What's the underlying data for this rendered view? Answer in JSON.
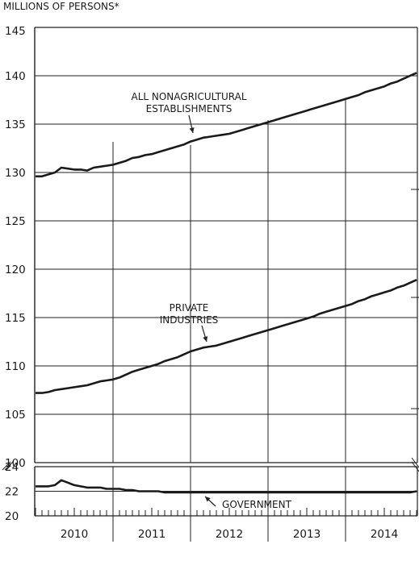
{
  "chart_data": [
    {
      "type": "line",
      "ylabel": "MILLIONS OF PERSONS*",
      "x_labels": [
        "2010",
        "2011",
        "2012",
        "2013",
        "2014"
      ],
      "ylim": [
        100,
        145
      ],
      "yticks": [
        145,
        140,
        135,
        130,
        125,
        120,
        115,
        110,
        105,
        100
      ],
      "grid": true,
      "series": [
        {
          "name": "ALL NONAGRICULTURAL ESTABLISHMENTS",
          "x": [
            2010.0,
            2010.083,
            2010.167,
            2010.25,
            2010.333,
            2010.417,
            2010.5,
            2010.583,
            2010.667,
            2010.75,
            2010.833,
            2010.917,
            2011.0,
            2011.083,
            2011.167,
            2011.25,
            2011.333,
            2011.417,
            2011.5,
            2011.583,
            2011.667,
            2011.75,
            2011.833,
            2011.917,
            2012.0,
            2012.083,
            2012.167,
            2012.25,
            2012.333,
            2012.417,
            2012.5,
            2012.583,
            2012.667,
            2012.75,
            2012.833,
            2012.917,
            2013.0,
            2013.083,
            2013.167,
            2013.25,
            2013.333,
            2013.417,
            2013.5,
            2013.583,
            2013.667,
            2013.75,
            2013.833,
            2013.917,
            2014.0,
            2014.083,
            2014.167,
            2014.25,
            2014.333,
            2014.417,
            2014.5,
            2014.583,
            2014.667,
            2014.75,
            2014.833,
            2014.917
          ],
          "values": [
            129.6,
            129.6,
            129.8,
            130.0,
            130.5,
            130.4,
            130.3,
            130.3,
            130.2,
            130.5,
            130.6,
            130.7,
            130.8,
            131.0,
            131.2,
            131.5,
            131.6,
            131.8,
            131.9,
            132.1,
            132.3,
            132.5,
            132.7,
            132.9,
            133.2,
            133.4,
            133.6,
            133.7,
            133.8,
            133.9,
            134.0,
            134.2,
            134.4,
            134.6,
            134.8,
            135.0,
            135.2,
            135.4,
            135.6,
            135.8,
            136.0,
            136.2,
            136.4,
            136.6,
            136.8,
            137.0,
            137.2,
            137.4,
            137.6,
            137.8,
            138.0,
            138.3,
            138.5,
            138.7,
            138.9,
            139.2,
            139.4,
            139.7,
            140.0,
            140.3
          ]
        },
        {
          "name": "PRIVATE INDUSTRIES",
          "x": [
            2010.0,
            2010.083,
            2010.167,
            2010.25,
            2010.333,
            2010.417,
            2010.5,
            2010.583,
            2010.667,
            2010.75,
            2010.833,
            2010.917,
            2011.0,
            2011.083,
            2011.167,
            2011.25,
            2011.333,
            2011.417,
            2011.5,
            2011.583,
            2011.667,
            2011.75,
            2011.833,
            2011.917,
            2012.0,
            2012.083,
            2012.167,
            2012.25,
            2012.333,
            2012.417,
            2012.5,
            2012.583,
            2012.667,
            2012.75,
            2012.833,
            2012.917,
            2013.0,
            2013.083,
            2013.167,
            2013.25,
            2013.333,
            2013.417,
            2013.5,
            2013.583,
            2013.667,
            2013.75,
            2013.833,
            2013.917,
            2014.0,
            2014.083,
            2014.167,
            2014.25,
            2014.333,
            2014.417,
            2014.5,
            2014.583,
            2014.667,
            2014.75,
            2014.833,
            2014.917
          ],
          "values": [
            107.2,
            107.2,
            107.3,
            107.5,
            107.6,
            107.7,
            107.8,
            107.9,
            108.0,
            108.2,
            108.4,
            108.5,
            108.6,
            108.8,
            109.1,
            109.4,
            109.6,
            109.8,
            110.0,
            110.2,
            110.5,
            110.7,
            110.9,
            111.2,
            111.5,
            111.7,
            111.9,
            112.0,
            112.1,
            112.3,
            112.5,
            112.7,
            112.9,
            113.1,
            113.3,
            113.5,
            113.7,
            113.9,
            114.1,
            114.3,
            114.5,
            114.7,
            114.9,
            115.1,
            115.4,
            115.6,
            115.8,
            116.0,
            116.2,
            116.4,
            116.7,
            116.9,
            117.2,
            117.4,
            117.6,
            117.8,
            118.1,
            118.3,
            118.6,
            118.9
          ]
        }
      ]
    },
    {
      "type": "line",
      "x_labels": [
        "2010",
        "2011",
        "2012",
        "2013",
        "2014"
      ],
      "ylim": [
        20,
        24
      ],
      "yticks": [
        24,
        22,
        20
      ],
      "grid": true,
      "series": [
        {
          "name": "GOVERNMENT",
          "x": [
            2010.0,
            2010.083,
            2010.167,
            2010.25,
            2010.333,
            2010.417,
            2010.5,
            2010.583,
            2010.667,
            2010.75,
            2010.833,
            2010.917,
            2011.0,
            2011.083,
            2011.167,
            2011.25,
            2011.333,
            2011.417,
            2011.5,
            2011.583,
            2011.667,
            2011.75,
            2011.833,
            2011.917,
            2012.0,
            2012.083,
            2012.167,
            2012.25,
            2012.333,
            2012.417,
            2012.5,
            2012.583,
            2012.667,
            2012.75,
            2012.833,
            2012.917,
            2013.0,
            2013.083,
            2013.167,
            2013.25,
            2013.333,
            2013.417,
            2013.5,
            2013.583,
            2013.667,
            2013.75,
            2013.833,
            2013.917,
            2014.0,
            2014.083,
            2014.167,
            2014.25,
            2014.333,
            2014.417,
            2014.5,
            2014.583,
            2014.667,
            2014.75,
            2014.833,
            2014.917
          ],
          "values": [
            22.4,
            22.4,
            22.4,
            22.5,
            22.9,
            22.7,
            22.5,
            22.4,
            22.3,
            22.3,
            22.3,
            22.2,
            22.2,
            22.2,
            22.1,
            22.1,
            22.0,
            22.0,
            22.0,
            22.0,
            21.9,
            21.9,
            21.9,
            21.9,
            21.9,
            21.9,
            21.9,
            21.9,
            21.9,
            21.9,
            21.9,
            21.9,
            21.9,
            21.9,
            21.9,
            21.9,
            21.9,
            21.9,
            21.9,
            21.9,
            21.9,
            21.9,
            21.9,
            21.9,
            21.9,
            21.9,
            21.9,
            21.9,
            21.9,
            21.9,
            21.9,
            21.9,
            21.9,
            21.9,
            21.9,
            21.9,
            21.9,
            21.9,
            21.9,
            22.0
          ]
        }
      ]
    }
  ]
}
